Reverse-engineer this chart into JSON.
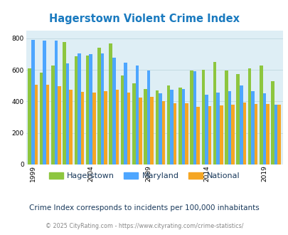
{
  "title": "Hagerstown Violent Crime Index",
  "subtitle": "Crime Index corresponds to incidents per 100,000 inhabitants",
  "footer": "© 2025 CityRating.com - https://www.cityrating.com/crime-statistics/",
  "years": [
    1999,
    2000,
    2001,
    2002,
    2003,
    2004,
    2005,
    2006,
    2007,
    2008,
    2009,
    2010,
    2011,
    2012,
    2013,
    2014,
    2015,
    2016,
    2017,
    2018,
    2019,
    2020
  ],
  "hagerstown": [
    610,
    585,
    630,
    775,
    685,
    690,
    740,
    770,
    565,
    515,
    480,
    470,
    500,
    490,
    595,
    600,
    650,
    595,
    575,
    610,
    630,
    530
  ],
  "maryland": [
    790,
    785,
    785,
    640,
    705,
    700,
    705,
    680,
    645,
    630,
    595,
    450,
    475,
    480,
    590,
    445,
    455,
    465,
    500,
    465,
    450,
    380
  ],
  "national": [
    507,
    507,
    498,
    475,
    462,
    457,
    465,
    474,
    455,
    425,
    430,
    400,
    388,
    388,
    367,
    370,
    375,
    380,
    395,
    385,
    383,
    381
  ],
  "colors": {
    "hagerstown": "#8dc63f",
    "maryland": "#4da6ff",
    "national": "#f5a623"
  },
  "ylim": [
    0,
    850
  ],
  "yticks": [
    0,
    200,
    400,
    600,
    800
  ],
  "xtick_labels": [
    "1999",
    "2004",
    "2009",
    "2014",
    "2019"
  ],
  "xtick_positions": [
    0,
    5,
    10,
    15,
    20
  ],
  "background_color": "#deeef5",
  "title_color": "#1a7abf",
  "subtitle_color": "#1a3a5c",
  "footer_color": "#888888"
}
